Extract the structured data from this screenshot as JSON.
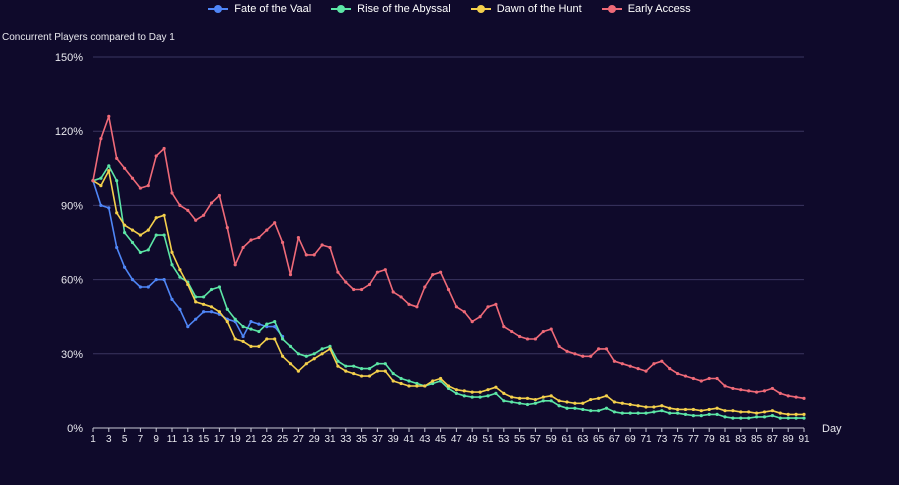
{
  "chart_data": {
    "type": "line",
    "ylabel": "Concurrent Players compared to Day 1",
    "xlabel": "Day",
    "ylim": [
      0,
      150
    ],
    "y_ticks": [
      "0%",
      "30%",
      "60%",
      "90%",
      "120%",
      "150%"
    ],
    "x_ticks": [
      "1",
      "3",
      "5",
      "7",
      "9",
      "11",
      "13",
      "15",
      "17",
      "19",
      "21",
      "23",
      "25",
      "27",
      "29",
      "31",
      "33",
      "35",
      "37",
      "39",
      "41",
      "43",
      "45",
      "47",
      "49",
      "51",
      "53",
      "55",
      "57",
      "59",
      "61",
      "63",
      "65",
      "67",
      "69",
      "71",
      "73",
      "75",
      "77",
      "79",
      "81",
      "83",
      "85",
      "87",
      "89",
      "91"
    ],
    "grid": true,
    "legend_position": "top-center",
    "series": [
      {
        "name": "Fate of the Vaal",
        "color": "#4f86f7",
        "x": [
          1,
          2,
          3,
          4,
          5,
          6,
          7,
          8,
          9,
          10,
          11,
          12,
          13,
          14,
          15,
          16,
          17,
          18,
          19,
          20,
          21,
          22,
          23,
          24,
          25
        ],
        "values": [
          100,
          90,
          89,
          73,
          65,
          60,
          57,
          57,
          60,
          60,
          52,
          48,
          41,
          44,
          47,
          47,
          46,
          44,
          43,
          37,
          43,
          42,
          41,
          41,
          37
        ]
      },
      {
        "name": "Rise of the Abyssal",
        "color": "#5ce6a6",
        "x": [
          1,
          2,
          3,
          4,
          5,
          6,
          7,
          8,
          9,
          10,
          11,
          12,
          13,
          14,
          15,
          16,
          17,
          18,
          19,
          20,
          21,
          22,
          23,
          24,
          25,
          26,
          27,
          28,
          29,
          30,
          31,
          32,
          33,
          34,
          35,
          36,
          37,
          38,
          39,
          40,
          41,
          42,
          43,
          44,
          45,
          46,
          47,
          48,
          49,
          50,
          51,
          52,
          53,
          54,
          55,
          56,
          57,
          58,
          59,
          60,
          61,
          62,
          63,
          64,
          65,
          66,
          67,
          68,
          69,
          70,
          71,
          72,
          73,
          74,
          75,
          76,
          77,
          78,
          79,
          80,
          81,
          82,
          83,
          84,
          85,
          86,
          87,
          88,
          89,
          90,
          91
        ],
        "values": [
          100,
          101,
          106,
          100,
          79,
          75,
          71,
          72,
          78,
          78,
          66,
          61,
          59,
          53,
          53,
          56,
          57,
          48,
          44,
          41,
          40,
          39,
          42,
          43,
          36,
          33,
          30,
          29,
          30,
          32,
          33,
          27,
          25,
          25,
          24,
          24,
          26,
          26,
          22,
          20,
          19,
          18,
          17,
          18,
          19,
          16,
          14,
          13,
          12.5,
          12.5,
          13,
          14,
          11,
          10.5,
          10,
          9.5,
          10,
          11,
          11,
          9,
          8,
          8,
          7.5,
          7,
          7,
          8,
          6.5,
          6,
          6,
          6,
          6,
          6.5,
          7,
          6,
          6,
          5.5,
          5,
          5,
          5.5,
          5.5,
          4.5,
          4,
          4,
          4,
          4.5,
          4.5,
          5,
          4,
          4,
          4,
          4
        ]
      },
      {
        "name": "Dawn of the Hunt",
        "color": "#f4d04c",
        "x": [
          1,
          2,
          3,
          4,
          5,
          6,
          7,
          8,
          9,
          10,
          11,
          12,
          13,
          14,
          15,
          16,
          17,
          18,
          19,
          20,
          21,
          22,
          23,
          24,
          25,
          26,
          27,
          28,
          29,
          30,
          31,
          32,
          33,
          34,
          35,
          36,
          37,
          38,
          39,
          40,
          41,
          42,
          43,
          44,
          45,
          46,
          47,
          48,
          49,
          50,
          51,
          52,
          53,
          54,
          55,
          56,
          57,
          58,
          59,
          60,
          61,
          62,
          63,
          64,
          65,
          66,
          67,
          68,
          69,
          70,
          71,
          72,
          73,
          74,
          75,
          76,
          77,
          78,
          79,
          80,
          81,
          82,
          83,
          84,
          85,
          86,
          87,
          88,
          89,
          90,
          91
        ],
        "values": [
          100,
          98,
          104,
          87,
          82,
          80,
          78,
          80,
          85,
          86,
          71,
          64,
          58,
          51,
          50,
          49,
          47,
          43,
          36,
          35,
          33,
          33,
          36,
          36,
          29,
          26,
          23,
          26,
          28,
          30,
          32,
          25,
          23,
          22,
          21,
          21,
          23,
          23,
          19,
          18,
          17,
          17,
          17,
          19,
          20,
          17,
          15.5,
          15,
          14.5,
          14.5,
          15.5,
          16.5,
          14,
          12.5,
          12,
          12,
          11.5,
          12.5,
          13,
          11,
          10.5,
          10,
          10,
          11.5,
          12,
          13,
          10.5,
          10,
          9.5,
          9,
          8.5,
          8.5,
          9,
          8,
          7.5,
          7.5,
          7.5,
          7,
          7.5,
          8,
          7,
          7,
          6.5,
          6.5,
          6,
          6.5,
          7,
          6,
          5.5,
          5.5,
          5.5
        ]
      },
      {
        "name": "Early Access",
        "color": "#ef6a78",
        "x": [
          1,
          2,
          3,
          4,
          5,
          6,
          7,
          8,
          9,
          10,
          11,
          12,
          13,
          14,
          15,
          16,
          17,
          18,
          19,
          20,
          21,
          22,
          23,
          24,
          25,
          26,
          27,
          28,
          29,
          30,
          31,
          32,
          33,
          34,
          35,
          36,
          37,
          38,
          39,
          40,
          41,
          42,
          43,
          44,
          45,
          46,
          47,
          48,
          49,
          50,
          51,
          52,
          53,
          54,
          55,
          56,
          57,
          58,
          59,
          60,
          61,
          62,
          63,
          64,
          65,
          66,
          67,
          68,
          69,
          70,
          71,
          72,
          73,
          74,
          75,
          76,
          77,
          78,
          79,
          80,
          81,
          82,
          83,
          84,
          85,
          86,
          87,
          88,
          89,
          90,
          91
        ],
        "values": [
          100,
          117,
          126,
          109,
          105,
          101,
          97,
          98,
          110,
          113,
          95,
          90,
          88,
          84,
          86,
          91,
          94,
          81,
          66,
          73,
          76,
          77,
          80,
          83,
          75,
          62,
          77,
          70,
          70,
          74,
          73,
          63,
          59,
          56,
          56,
          58,
          63,
          64,
          55,
          53,
          50,
          49,
          57,
          62,
          63,
          56,
          49,
          47,
          43,
          45,
          49,
          50,
          41,
          39,
          37,
          36,
          36,
          39,
          40,
          33,
          31,
          30,
          29,
          29,
          32,
          32,
          27,
          26,
          25,
          24,
          23,
          26,
          27,
          24,
          22,
          21,
          20,
          19,
          20,
          20,
          17,
          16,
          15.5,
          15,
          14.5,
          15,
          16,
          14,
          13,
          12.5,
          12
        ]
      }
    ]
  }
}
